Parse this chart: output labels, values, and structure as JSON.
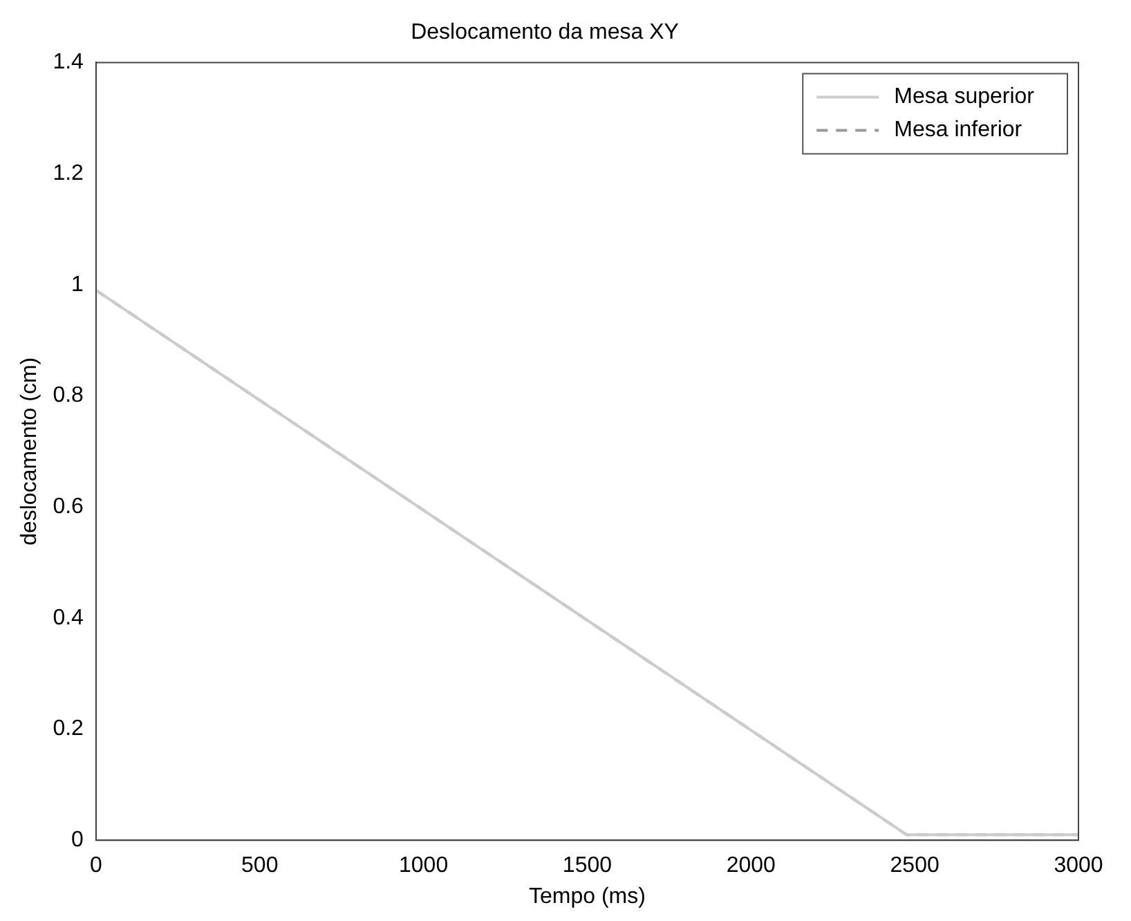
{
  "chart_data": {
    "type": "line",
    "title": "Deslocamento da mesa XY",
    "xlabel": "Tempo (ms)",
    "ylabel": "deslocamento (cm)",
    "x": [
      0,
      2475,
      3000
    ],
    "series": [
      {
        "name": "Mesa superior",
        "color": "#cccccc",
        "values": [
          0.99,
          0.01,
          0.01
        ],
        "line_style": "solid"
      },
      {
        "name": "Mesa inferior",
        "color": "#999999",
        "values": [
          0.99,
          0.01,
          0.01
        ],
        "line_style": "dashed"
      }
    ],
    "xlim": [
      0,
      3000
    ],
    "xticks": [
      0,
      500,
      1000,
      1500,
      2000,
      2500,
      3000
    ],
    "ylim": [
      0,
      1.4
    ],
    "yticks": [
      0,
      0.2,
      0.4,
      0.6,
      0.8,
      1,
      1.2,
      1.4
    ],
    "grid": false,
    "legend": "top right",
    "marker": "none"
  }
}
